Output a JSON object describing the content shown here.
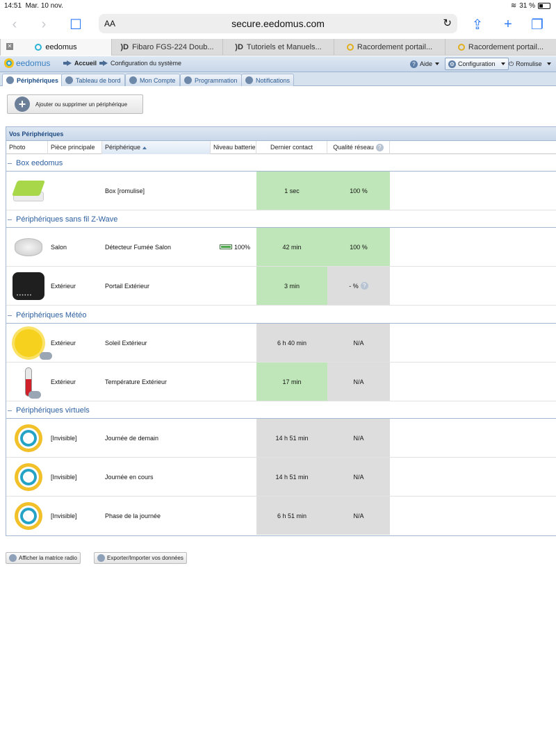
{
  "status": {
    "time": "14:51",
    "date": "Mar. 10 nov.",
    "battery": "31 %"
  },
  "browser": {
    "text_size_label": "AA",
    "url": "secure.eedomus.com",
    "tabs": [
      {
        "label": "eedomus"
      },
      {
        "label": "Fibaro FGS-224 Doub..."
      },
      {
        "label": "Tutoriels et Manuels..."
      },
      {
        "label": "Racordement portail..."
      },
      {
        "label": "Racordement portail..."
      }
    ]
  },
  "app": {
    "logo": "eedomus",
    "breadcrumb": [
      "Accueil",
      "Configuration du système"
    ],
    "help": "Aide",
    "config": "Configuration",
    "user": "Romulise"
  },
  "apptabs": [
    {
      "label": "Périphériques"
    },
    {
      "label": "Tableau de bord"
    },
    {
      "label": "Mon Compte"
    },
    {
      "label": "Programmation"
    },
    {
      "label": "Notifications"
    }
  ],
  "add_button": "Ajouter ou supprimer un périphérique",
  "panel": {
    "title": "Vos Périphériques",
    "columns": [
      "Photo",
      "Pièce principale",
      "Périphérique",
      "Niveau batterie",
      "Dernier contact",
      "Qualité réseau"
    ]
  },
  "groups": [
    {
      "title": "Box eedomus",
      "rows": [
        {
          "room": "",
          "name": "Box [romulise]",
          "battery": "",
          "contact": "1 sec",
          "quality": "100 %"
        }
      ]
    },
    {
      "title": "Périphériques sans fil Z-Wave",
      "rows": [
        {
          "room": "Salon",
          "name": "Détecteur Fumée Salon",
          "battery": "100%",
          "contact": "42 min",
          "quality": "100 %"
        },
        {
          "room": "Extérieur",
          "name": "Portail Extérieur",
          "battery": "",
          "contact": "3 min",
          "quality": "- %"
        }
      ]
    },
    {
      "title": "Périphériques Météo",
      "rows": [
        {
          "room": "Extérieur",
          "name": "Soleil Extérieur",
          "battery": "",
          "contact": "6 h 40 min",
          "quality": "N/A"
        },
        {
          "room": "Extérieur",
          "name": "Température Extérieur",
          "battery": "",
          "contact": "17 min",
          "quality": "N/A"
        }
      ]
    },
    {
      "title": "Périphériques virtuels",
      "rows": [
        {
          "room": "[Invisible]",
          "name": "Journée de demain",
          "battery": "",
          "contact": "14 h 51 min",
          "quality": "N/A"
        },
        {
          "room": "[Invisible]",
          "name": "Journée en cours",
          "battery": "",
          "contact": "14 h 51 min",
          "quality": "N/A"
        },
        {
          "room": "[Invisible]",
          "name": "Phase de la journée",
          "battery": "",
          "contact": "6 h 51 min",
          "quality": "N/A"
        }
      ]
    }
  ],
  "footer": {
    "radio_matrix": "Afficher la matrice radio",
    "export_import": "Exporter/Importer vos données"
  },
  "colors": {
    "good": "#bfe6b8",
    "neutral": "#dddddd",
    "accent": "#2c5fa0"
  }
}
